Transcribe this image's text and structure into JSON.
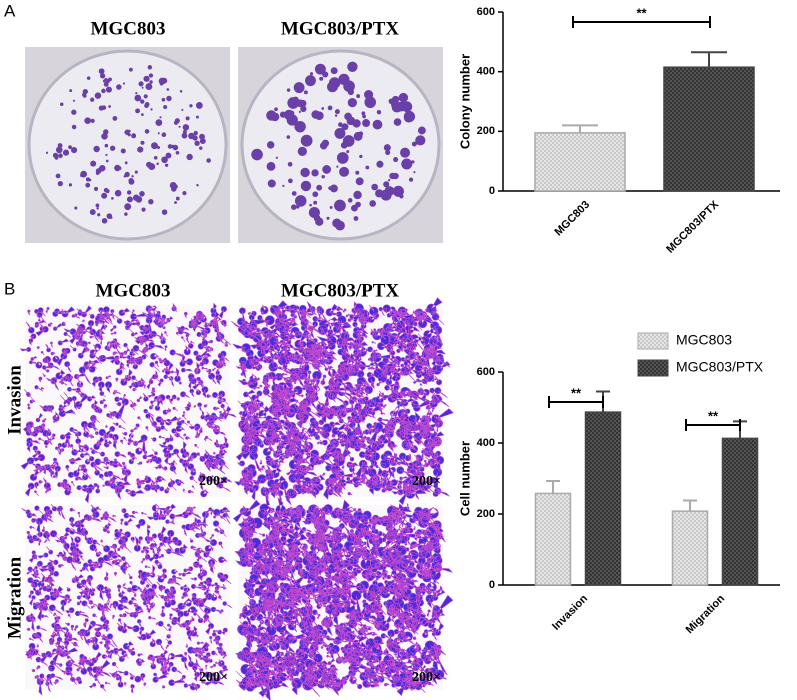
{
  "panel_a": {
    "label": "A",
    "columns": [
      "MGC803",
      "MGC803/PTX"
    ]
  },
  "panel_b": {
    "label": "B",
    "columns": [
      "MGC803",
      "MGC803/PTX"
    ],
    "rows": [
      "Invasion",
      "Migration"
    ],
    "scale_labels": [
      "200×",
      "200×",
      "200×",
      "200×"
    ]
  },
  "chart_data": [
    {
      "type": "bar",
      "categories": [
        "MGC803",
        "MGC803/PTX"
      ],
      "values": [
        195,
        415
      ],
      "errors": [
        25,
        50
      ],
      "colors": [
        "#c8c8c8",
        "#555555"
      ],
      "ylabel": "Colony number",
      "ylim": [
        0,
        600
      ],
      "yticks": [
        0,
        200,
        400,
        600
      ],
      "annotations": [
        "**"
      ]
    },
    {
      "type": "bar",
      "categories": [
        "Invasion",
        "Migration"
      ],
      "series": [
        {
          "name": "MGC803",
          "color": "#c8c8c8",
          "values": [
            258,
            208
          ],
          "errors": [
            35,
            30
          ]
        },
        {
          "name": "MGC803/PTX",
          "color": "#555555",
          "values": [
            487,
            413
          ],
          "errors": [
            58,
            48
          ]
        }
      ],
      "ylabel": "Cell number",
      "ylim": [
        0,
        600
      ],
      "yticks": [
        0,
        200,
        400,
        600
      ],
      "legend": "upper right",
      "annotations": [
        "**",
        "**"
      ]
    }
  ]
}
